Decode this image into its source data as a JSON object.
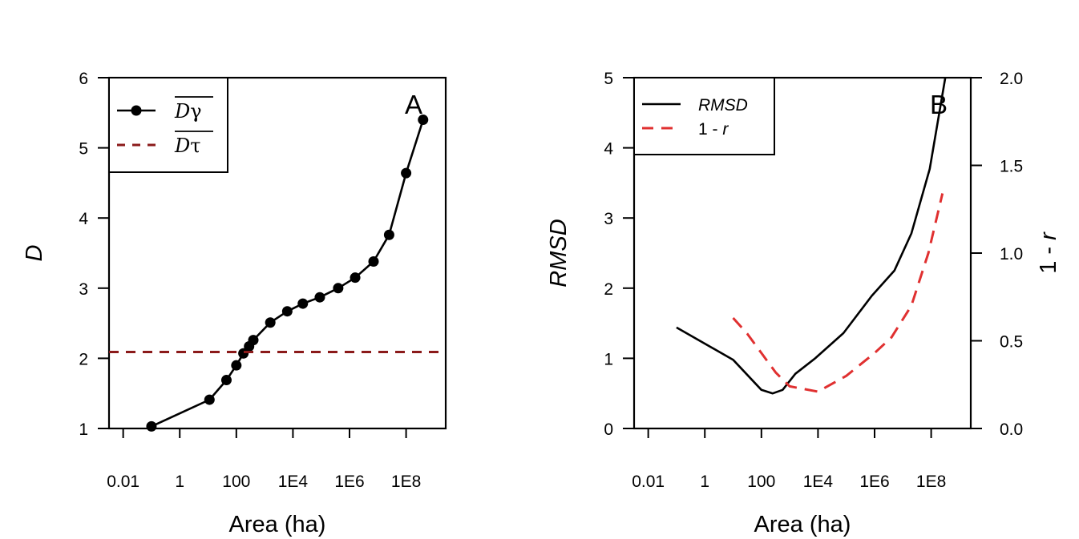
{
  "chart_data": [
    {
      "type": "line",
      "panel_label": "A",
      "xlabel": "Area (ha)",
      "ylabel": "D",
      "x_scale": "log10",
      "xlim_log10": [
        -2.5,
        9.4
      ],
      "ylim": [
        1,
        6
      ],
      "xticks": [
        {
          "log10": -2,
          "label": "0.01"
        },
        {
          "log10": 0,
          "label": "1"
        },
        {
          "log10": 2,
          "label": "100"
        },
        {
          "log10": 4,
          "label": "1E4"
        },
        {
          "log10": 6,
          "label": "1E6"
        },
        {
          "log10": 8,
          "label": "1E8"
        }
      ],
      "yticks": [
        1,
        2,
        3,
        4,
        5,
        6
      ],
      "legend": {
        "position": "top-left",
        "entries": [
          {
            "name": "Dγ",
            "letter": "D",
            "symbol": "γ",
            "style": "line-points",
            "overline": true
          },
          {
            "name": "Dτ",
            "letter": "D",
            "symbol": "τ",
            "style": "dashed",
            "overline": true
          }
        ]
      },
      "series": [
        {
          "name": "Dγ",
          "color": "#000000",
          "style": "line-points",
          "x_log10": [
            -1.0,
            1.05,
            1.65,
            2.0,
            2.25,
            2.45,
            2.6,
            3.2,
            3.8,
            4.35,
            4.95,
            5.6,
            6.2,
            6.85,
            7.4,
            8.0,
            8.6
          ],
          "y": [
            1.03,
            1.41,
            1.69,
            1.9,
            2.07,
            2.17,
            2.26,
            2.51,
            2.67,
            2.78,
            2.87,
            3.0,
            3.15,
            3.38,
            3.76,
            4.64,
            5.4
          ]
        },
        {
          "name": "Dτ",
          "color": "#8b1a1a",
          "style": "dashed",
          "x_log10": [
            -2.5,
            9.4
          ],
          "y": [
            2.09,
            2.09
          ]
        }
      ]
    },
    {
      "type": "line",
      "panel_label": "B",
      "xlabel": "Area (ha)",
      "ylabel": "RMSD",
      "ylabel_right": "1 - r",
      "x_scale": "log10",
      "xlim_log10": [
        -2.5,
        9.4
      ],
      "ylim": [
        0,
        5
      ],
      "ylim_right": [
        0,
        2
      ],
      "xticks": [
        {
          "log10": -2,
          "label": "0.01"
        },
        {
          "log10": 0,
          "label": "1"
        },
        {
          "log10": 2,
          "label": "100"
        },
        {
          "log10": 4,
          "label": "1E4"
        },
        {
          "log10": 6,
          "label": "1E6"
        },
        {
          "log10": 8,
          "label": "1E8"
        }
      ],
      "yticks": [
        0,
        1,
        2,
        3,
        4,
        5
      ],
      "yticks_right": [
        "0.0",
        "0.5",
        "1.0",
        "1.5",
        "2.0"
      ],
      "legend": {
        "position": "top-left",
        "entries": [
          {
            "name": "RMSD",
            "style": "solid"
          },
          {
            "name": "1 - r",
            "prefix": "1 - ",
            "italic": "r",
            "style": "dashed"
          }
        ]
      },
      "series": [
        {
          "name": "RMSD",
          "color": "#000000",
          "style": "solid",
          "axis": "left",
          "x_log10": [
            -1.0,
            1.0,
            2.0,
            2.4,
            2.75,
            3.2,
            3.9,
            4.9,
            5.9,
            6.7,
            7.3,
            7.95,
            8.5
          ],
          "y": [
            1.44,
            0.98,
            0.55,
            0.5,
            0.55,
            0.78,
            1.0,
            1.36,
            1.89,
            2.25,
            2.78,
            3.7,
            5.0
          ]
        },
        {
          "name": "1 - r",
          "color": "#e03030",
          "style": "dashed",
          "axis": "right",
          "x_log10": [
            1.0,
            1.5,
            2.0,
            2.5,
            3.0,
            4.0,
            5.0,
            6.0,
            6.6,
            7.3,
            7.9,
            8.4
          ],
          "y": [
            0.63,
            0.54,
            0.43,
            0.32,
            0.24,
            0.21,
            0.3,
            0.43,
            0.52,
            0.7,
            1.0,
            1.34
          ]
        }
      ]
    }
  ]
}
